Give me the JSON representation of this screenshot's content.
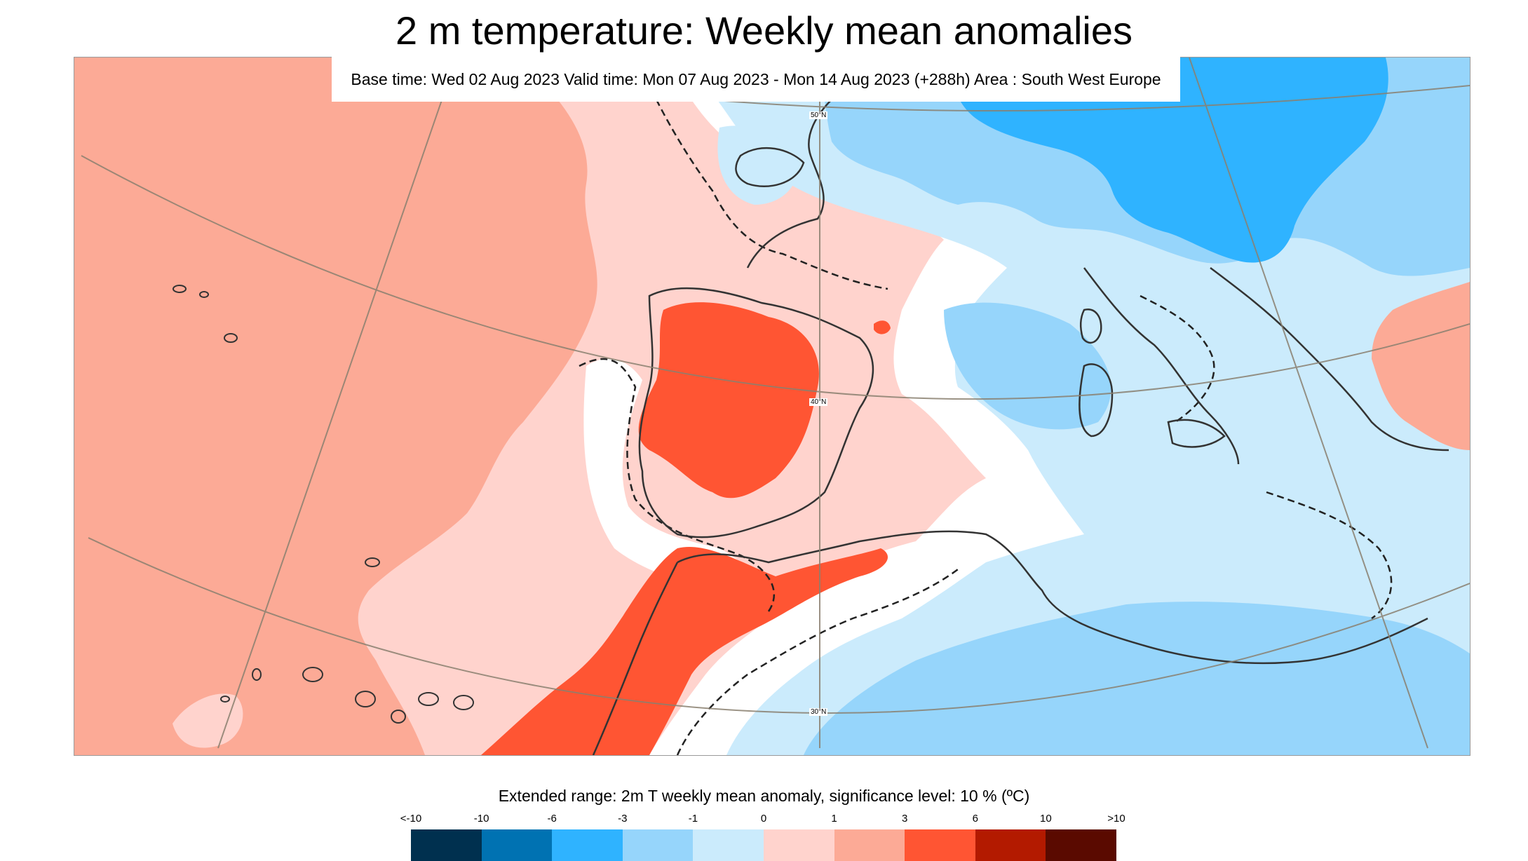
{
  "header": {
    "title": "2 m temperature: Weekly mean anomalies",
    "subtitle": "Base time: Wed 02 Aug 2023 Valid time: Mon 07 Aug 2023 - Mon 14 Aug 2023 (+288h) Area : South West Europe"
  },
  "map": {
    "latitude_labels": [
      "50°N",
      "40°N",
      "30°N"
    ]
  },
  "colorbar": {
    "title": "Extended range: 2m T weekly mean anomaly, significance level: 10 % (ºC)",
    "labels": [
      "<-10",
      "-10",
      "-6",
      "-3",
      "-1",
      "0",
      "1",
      "3",
      "6",
      "10",
      ">10"
    ],
    "colors": [
      "#00304f",
      "#0072b2",
      "#2fb3ff",
      "#96d5fb",
      "#cbebfc",
      "#ffd3cd",
      "#fcaa96",
      "#ff5533",
      "#b31a00",
      "#5a0a00"
    ]
  }
}
